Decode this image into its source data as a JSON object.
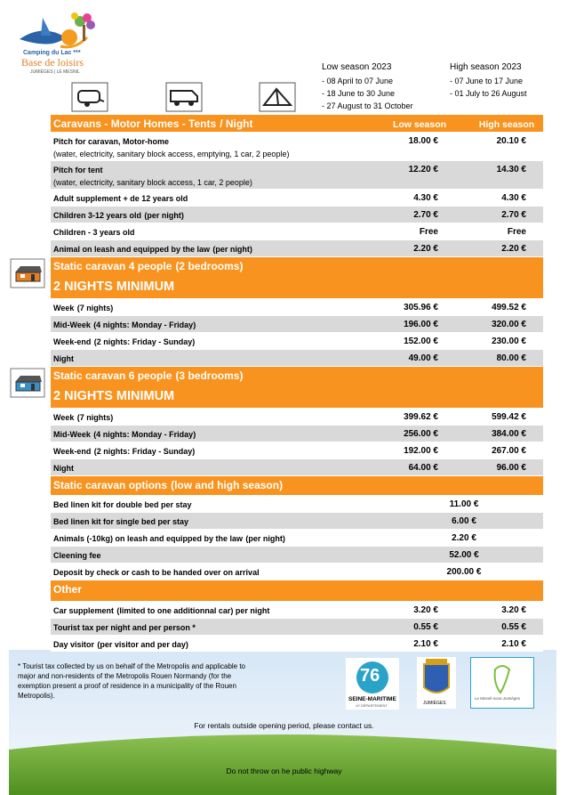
{
  "logo": {
    "line1": "Camping du Lac ***",
    "line2": "Base de loisirs",
    "line3": "JUMIÈGES | LE MESNIL"
  },
  "seasons": {
    "low": {
      "title": "Low season 2023",
      "periods": [
        "- 08 April to 07 June",
        "- 18 June to 30 June",
        "- 27 August to 31 October"
      ]
    },
    "high": {
      "title": "High season 2023",
      "periods": [
        "- 07 June to 17 June",
        "- 01 July to 26 August"
      ]
    }
  },
  "sections": [
    {
      "title": "Caravans - Motor Homes - Tents",
      "title_note": "/ Night",
      "columns": [
        "Low season",
        "High season"
      ],
      "rows": [
        {
          "label": "Pitch for caravan, Motor-home",
          "detail": "(water, electricity, sanitary block access, emptying, 1 car, 2 people)",
          "low": "18.00 €",
          "high": "20.10 €"
        },
        {
          "label": "Pitch for tent",
          "detail": "(water, electricity, sanitary block access, 1 car, 2 people)",
          "low": "12.20 €",
          "high": "14.30 €"
        },
        {
          "label": "Adult supplement + de 12 years old",
          "low": "4.30 €",
          "high": "4.30 €"
        },
        {
          "label": "Children 3-12 years old",
          "note": "(per night)",
          "low": "2.70 €",
          "high": "2.70 €"
        },
        {
          "label": "Children - 3 years old",
          "low": "Free",
          "high": "Free"
        },
        {
          "label": "Animal on leash and equipped by the law",
          "note": "(per night)",
          "low": "2.20 €",
          "high": "2.20 €"
        }
      ]
    },
    {
      "title": "Static caravan 4 people",
      "title_note": "(2 bedrooms)",
      "subtitle": "2 NIGHTS MINIMUM",
      "rows": [
        {
          "label": "Week",
          "note": "(7 nights)",
          "low": "305.96 €",
          "high": "499.52 €"
        },
        {
          "label": "Mid-Week",
          "note": "(4 nights: Monday - Friday)",
          "low": "196.00 €",
          "high": "320.00 €"
        },
        {
          "label": "Week-end",
          "note": "(2 nights: Friday - Sunday)",
          "low": "152.00 €",
          "high": "230.00 €"
        },
        {
          "label": "Night",
          "low": "49.00 €",
          "high": "80.00 €"
        }
      ]
    },
    {
      "title": "Static caravan 6 people",
      "title_note": "(3 bedrooms)",
      "subtitle": "2 NIGHTS MINIMUM",
      "rows": [
        {
          "label": "Week",
          "note": "(7 nights)",
          "low": "399.62 €",
          "high": "599.42 €"
        },
        {
          "label": "Mid-Week",
          "note": "(4 nights: Monday - Friday)",
          "low": "256.00 €",
          "high": "384.00 €"
        },
        {
          "label": "Week-end",
          "note": "(2 nights: Friday - Sunday)",
          "low": "192.00 €",
          "high": "267.00 €"
        },
        {
          "label": "Night",
          "low": "64.00 €",
          "high": "96.00 €"
        }
      ]
    },
    {
      "title": "Static caravan options",
      "title_note": "(low and high season)",
      "rows": [
        {
          "label": "Bed linen kit for double bed per stay",
          "price": "11.00 €"
        },
        {
          "label": "Bed linen kit for single bed per stay",
          "price": "6.00 €"
        },
        {
          "label": "Animals (-10kg) on leash and equipped by the law",
          "note": "(per night)",
          "price": "2.20 €"
        },
        {
          "label": "Cleening fee",
          "price": "52.00 €"
        },
        {
          "label": "Deposit by check or cash to be handed over on arrival",
          "price": "200.00 €"
        }
      ]
    },
    {
      "title": "Other",
      "rows": [
        {
          "label": "Car supplement",
          "note": "(limited to one additionnal car) per night",
          "low": "3.20 €",
          "high": "3.20 €"
        },
        {
          "label": "Tourist tax per night and per person *",
          "low": "0.55 €",
          "high": "0.55 €"
        },
        {
          "label": "Day visitor",
          "note": "(per visitor and per day)",
          "low": "2.10 €",
          "high": "2.10 €"
        }
      ]
    }
  ],
  "footer": {
    "note": [
      "* Tourist tax collected by us on behalf of the Metropolis and applicable to",
      "major and non-residents of the Metropolis Rouen Normandy (for the",
      "exemption present a proof of residence in a municipality of the Rouen",
      "Metropolis)."
    ],
    "partners": {
      "dept_number": "76",
      "dept_name": "SEINE-MARITIME",
      "dept_sub": "LE DÉPARTEMENT",
      "town": "JUMIÈGES",
      "village": "Le Mesnil-sous-Jumièges"
    },
    "contact": "For rentals outside opening period, please contact us.",
    "highway": "Do not throw on he public highway"
  }
}
